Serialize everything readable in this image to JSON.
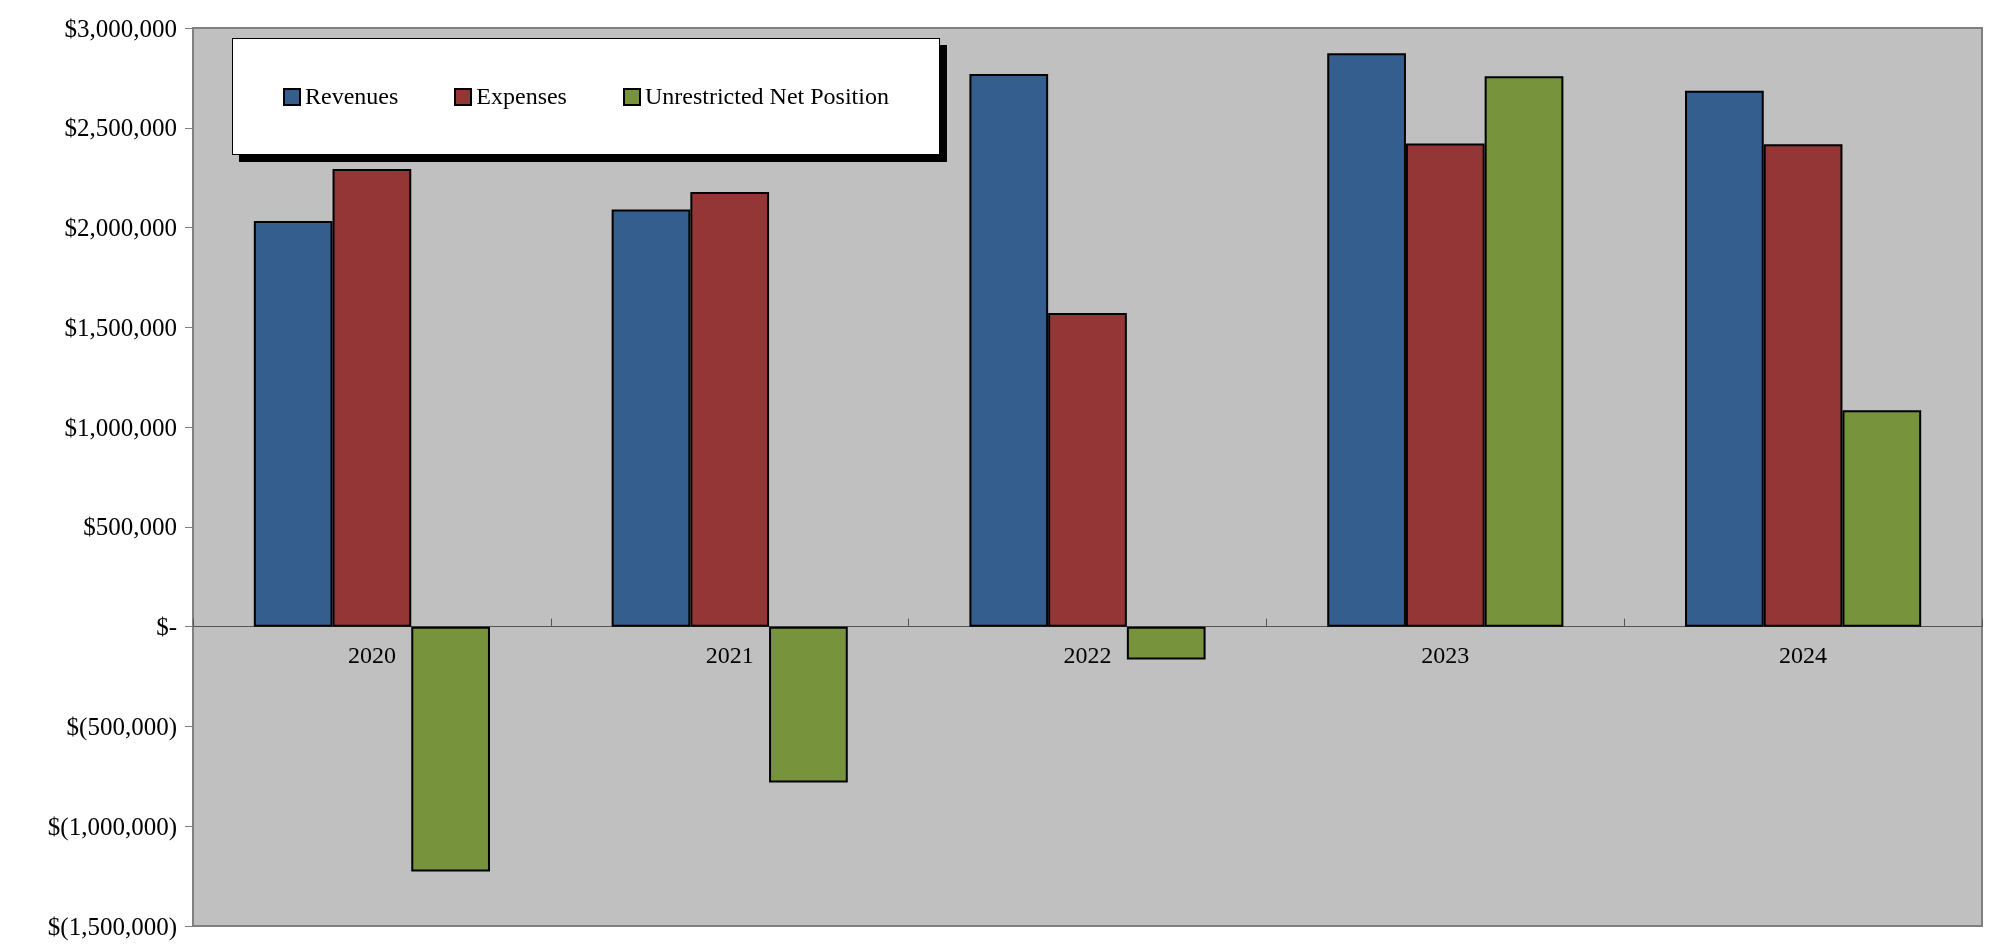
{
  "chart_data": {
    "type": "bar",
    "categories": [
      "2020",
      "2021",
      "2022",
      "2023",
      "2024"
    ],
    "series": [
      {
        "name": "Revenues",
        "color": "#345e8e",
        "values": [
          2033000,
          2090000,
          2770000,
          2874000,
          2686000
        ]
      },
      {
        "name": "Expenses",
        "color": "#943635",
        "values": [
          2294000,
          2178000,
          1572000,
          2421000,
          2418000
        ]
      },
      {
        "name": "Unrestricted Net Position",
        "color": "#77933c",
        "values": [
          -1227000,
          -781000,
          -164000,
          2758000,
          1085000
        ]
      }
    ],
    "ylim": [
      -1500000,
      3000000
    ],
    "yticks": [
      {
        "value": -1500000,
        "label": "$(1,500,000)"
      },
      {
        "value": -1000000,
        "label": "$(1,000,000)"
      },
      {
        "value": -500000,
        "label": "$(500,000)"
      },
      {
        "value": 0,
        "label": "$-"
      },
      {
        "value": 500000,
        "label": "$500,000"
      },
      {
        "value": 1000000,
        "label": "$1,000,000"
      },
      {
        "value": 1500000,
        "label": "$1,500,000"
      },
      {
        "value": 2000000,
        "label": "$2,000,000"
      },
      {
        "value": 2500000,
        "label": "$2,500,000"
      },
      {
        "value": 3000000,
        "label": "$3,000,000"
      }
    ],
    "grid": false,
    "legend": "top left"
  }
}
